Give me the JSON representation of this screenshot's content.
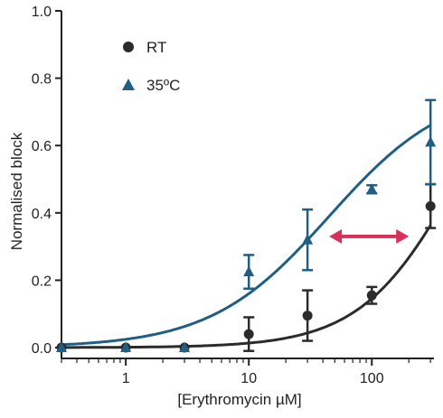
{
  "chart_data": {
    "type": "scatter",
    "title": "",
    "xlabel": "[Erythromycin µM]",
    "ylabel": "Normalised block",
    "x_scale": "log",
    "xlim": [
      0.3,
      320
    ],
    "ylim": [
      0,
      1.0
    ],
    "x_ticks": [
      1,
      10,
      100
    ],
    "x_tick_labels": [
      "1",
      "10",
      "100"
    ],
    "y_ticks": [
      0.0,
      0.2,
      0.4,
      0.6,
      0.8,
      1.0
    ],
    "y_tick_labels": [
      "0.0",
      "0.2",
      "0.4",
      "0.6",
      "0.8",
      "1.0"
    ],
    "grid": false,
    "legend_position": "top-left",
    "series": [
      {
        "name": "RT",
        "marker": "circle",
        "color": "#2b2b2b",
        "x": [
          0.3,
          1,
          3,
          10,
          30,
          100,
          300
        ],
        "y": [
          0.0,
          0.0,
          0.0,
          0.04,
          0.095,
          0.155,
          0.42
        ],
        "err": [
          0.0,
          0.0,
          0.0,
          0.05,
          0.075,
          0.025,
          0.065
        ],
        "fit": {
          "ic50": 500,
          "hill": 1.1
        }
      },
      {
        "name": "35ºC",
        "marker": "triangle",
        "color": "#1f5f84",
        "x": [
          0.3,
          1,
          3,
          10,
          30,
          100,
          300
        ],
        "y": [
          0.0,
          0.0,
          0.0,
          0.225,
          0.32,
          0.47,
          0.61
        ],
        "err": [
          0.0,
          0.0,
          0.0,
          0.05,
          0.09,
          0.012,
          0.125
        ],
        "fit": {
          "ic50": 45,
          "hill": 0.9,
          "max": 0.78
        }
      }
    ],
    "annotation": {
      "type": "double-arrow",
      "x_from": 45,
      "x_to": 200,
      "y": 0.33,
      "color": "#d6315b"
    }
  }
}
